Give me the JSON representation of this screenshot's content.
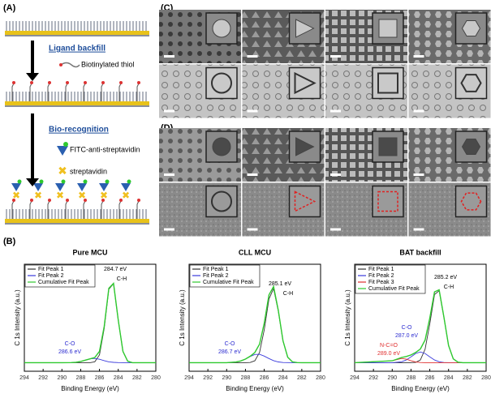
{
  "panel_labels": {
    "a": "(A)",
    "b": "(B)",
    "c": "(C)",
    "d": "(D)"
  },
  "schematic": {
    "step1": "Ligand backfill",
    "reagent1": "Biotinylated thiol",
    "step2": "Bio-recognition",
    "reagent2": "FITC-anti-streptavidin",
    "reagent3": "streptavidin"
  },
  "chart_data": [
    {
      "type": "line",
      "title": "Pure MCU",
      "xlabel": "Binding Energy (eV)",
      "ylabel": "C 1s Intensity (a.u.)",
      "xlim": [
        294,
        280
      ],
      "xticks": [
        294,
        292,
        290,
        288,
        286,
        284,
        282,
        280
      ],
      "ylim": [
        0,
        100
      ],
      "x": [
        294,
        290,
        289,
        288.5,
        288,
        287.5,
        287,
        286.5,
        286,
        285.5,
        285,
        284.5,
        284,
        283.5,
        283,
        282.5,
        282,
        280
      ],
      "series": [
        {
          "name": "Fit Peak 1",
          "color": "#333333",
          "values": [
            8,
            8,
            8,
            8,
            8,
            8,
            8,
            8.9,
            15.4,
            40,
            76.7,
            81.8,
            47.8,
            18.5,
            9.4,
            8,
            8,
            8
          ]
        },
        {
          "name": "Fit Peak 2",
          "color": "#3b3bdc",
          "values": [
            8,
            8,
            8.1,
            8.4,
            9.2,
            10.4,
            11.6,
            12,
            11.2,
            9.9,
            8.8,
            8.3,
            8.1,
            8,
            8,
            8,
            8,
            8
          ]
        },
        {
          "name": "Cumulative Fit Peak",
          "color": "#2ec92e",
          "values": [
            8,
            8,
            8.1,
            8.4,
            9.2,
            10.4,
            11.6,
            12.9,
            18.6,
            41.9,
            77.5,
            82.1,
            47.9,
            18.5,
            9.4,
            8,
            8,
            8
          ]
        }
      ],
      "annotations": [
        {
          "text": "284.7 eV",
          "color": "#000000"
        },
        {
          "text": "C-H",
          "color": "#000000"
        },
        {
          "text": "C-O",
          "color": "#2b2bd0"
        },
        {
          "text": "286.6 eV",
          "color": "#2b2bd0"
        }
      ]
    },
    {
      "type": "line",
      "title": "CLL MCU",
      "xlabel": "Binding Energy (eV)",
      "ylabel": "C 1s Intensity (a.u.)",
      "xlim": [
        294,
        280
      ],
      "xticks": [
        294,
        292,
        290,
        288,
        286,
        284,
        282,
        280
      ],
      "ylim": [
        0,
        100
      ],
      "x": [
        294,
        290,
        289,
        288.5,
        288,
        287.5,
        287,
        286.5,
        286,
        285.5,
        285,
        284.5,
        284,
        283.5,
        283,
        282.5,
        282,
        280
      ],
      "series": [
        {
          "name": "Fit Peak 1",
          "color": "#333333",
          "values": [
            8,
            8,
            8,
            8,
            8,
            8.2,
            9.8,
            17.5,
            38.8,
            67.5,
            77.3,
            56.3,
            28.3,
            13.1,
            8.8,
            8.1,
            8,
            8
          ]
        },
        {
          "name": "Fit Peak 2",
          "color": "#3b3bdc",
          "values": [
            8,
            8,
            8.6,
            9.6,
            11.4,
            13.8,
            15.7,
            15.8,
            14.2,
            11.9,
            9.9,
            8.7,
            8.2,
            8.1,
            8,
            8,
            8,
            8
          ]
        },
        {
          "name": "Cumulative Fit Peak",
          "color": "#2ec92e",
          "values": [
            8,
            8,
            8.6,
            9.6,
            11.4,
            14,
            17.5,
            25.3,
            45,
            71.4,
            79.2,
            57,
            28.5,
            13.2,
            8.8,
            8.1,
            8,
            8
          ]
        }
      ],
      "annotations": [
        {
          "text": "285.1 eV",
          "color": "#000000"
        },
        {
          "text": "C-H",
          "color": "#000000"
        },
        {
          "text": "C-O",
          "color": "#2b2bd0"
        },
        {
          "text": "286.7 eV",
          "color": "#2b2bd0"
        }
      ]
    },
    {
      "type": "line",
      "title": "BAT backfill",
      "xlabel": "Binding Energy (eV)",
      "ylabel": "C 1s Intensity (a.u.)",
      "xlim": [
        294,
        280
      ],
      "xticks": [
        294,
        292,
        290,
        288,
        286,
        284,
        282,
        280
      ],
      "ylim": [
        0,
        100
      ],
      "x": [
        294,
        290,
        289,
        288.5,
        288,
        287.5,
        287,
        286.5,
        286,
        285.5,
        285,
        284.5,
        284,
        283.5,
        283,
        282.5,
        282,
        280
      ],
      "series": [
        {
          "name": "Fit Peak 1",
          "color": "#333333",
          "values": [
            8,
            8,
            8,
            8,
            8,
            8.3,
            10.6,
            20.6,
            44.4,
            71.7,
            75.2,
            50.7,
            24.1,
            11.6,
            8.5,
            8,
            8,
            8
          ]
        },
        {
          "name": "Fit Peak 2",
          "color": "#3b3bdc",
          "values": [
            8,
            8,
            8.9,
            10.5,
            13.4,
            16.6,
            18,
            16.6,
            13.4,
            10.5,
            8.9,
            8.2,
            8,
            8,
            8,
            8,
            8,
            8
          ]
        },
        {
          "name": "Fit Peak 3",
          "color": "#e03030",
          "values": [
            8,
            9.8,
            12,
            11.3,
            9.8,
            8.7,
            8.2,
            8,
            8,
            8,
            8,
            8,
            8,
            8,
            8,
            8,
            8,
            8
          ]
        },
        {
          "name": "Cumulative Fit Peak",
          "color": "#2ec92e",
          "values": [
            8,
            9.8,
            12.9,
            13.8,
            15.2,
            17.6,
            20.8,
            29.2,
            49.8,
            74.2,
            76.1,
            50.9,
            24.1,
            11.6,
            8.5,
            8,
            8,
            8
          ]
        }
      ],
      "annotations": [
        {
          "text": "285.2 eV",
          "color": "#000000"
        },
        {
          "text": "C-H",
          "color": "#000000"
        },
        {
          "text": "C-O",
          "color": "#2b2bd0"
        },
        {
          "text": "287.0 eV",
          "color": "#2b2bd0"
        },
        {
          "text": "N-C=O",
          "color": "#e03030"
        },
        {
          "text": "289.0 eV",
          "color": "#e03030"
        }
      ]
    }
  ]
}
